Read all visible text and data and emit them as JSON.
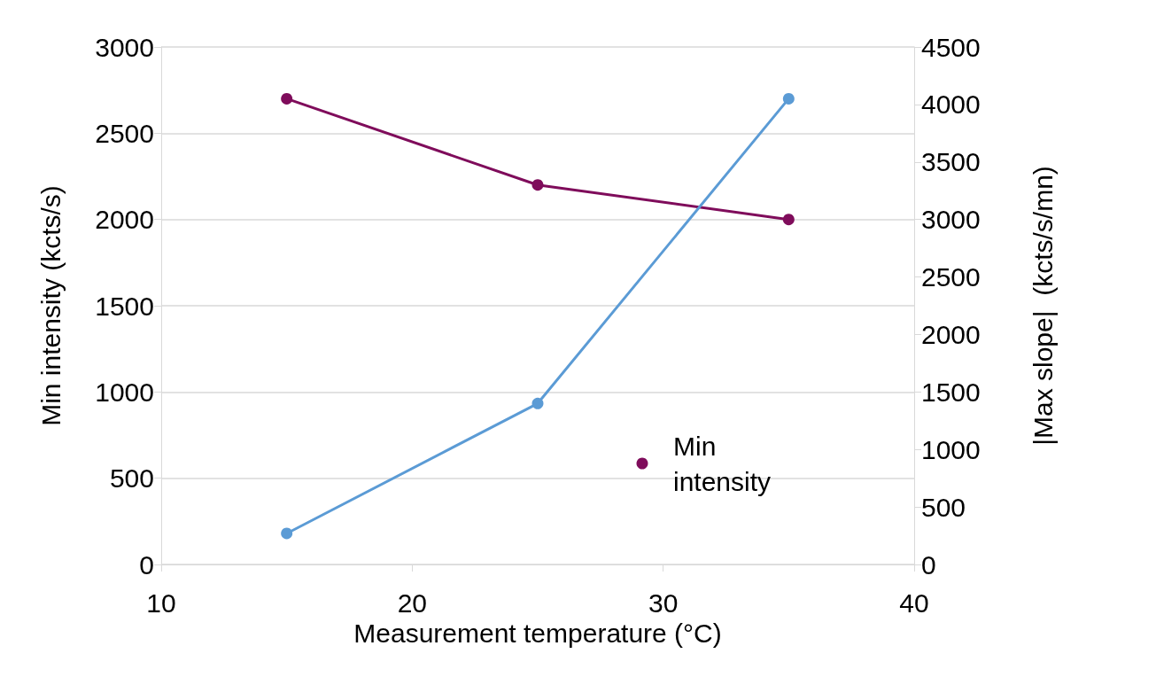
{
  "chart_data": {
    "type": "line",
    "xlabel": "Measurement temperature (°C)",
    "ylabel": "Min intensity (kcts/s)",
    "y2label": "|Max slope|  (kcts/s/mn)",
    "x": [
      15,
      25,
      35
    ],
    "series": [
      {
        "name": "Min intensity",
        "color": "#7f0c5b",
        "values": [
          2700,
          2200,
          2000
        ]
      },
      {
        "color": "#5b9bd5",
        "values": [
          270,
          1400,
          4050
        ],
        "axis": "y2"
      }
    ],
    "xlim": [
      10,
      40
    ],
    "xticks": [
      10,
      20,
      30,
      40
    ],
    "ylim": [
      0,
      3000
    ],
    "yticks": [
      0,
      500,
      1000,
      1500,
      2000,
      2500,
      3000
    ],
    "y2lim": [
      0,
      4500
    ],
    "y2ticks": [
      0,
      500,
      1000,
      1500,
      2000,
      2500,
      3000,
      3500,
      4000,
      4500
    ],
    "grid": "y",
    "legend": "right",
    "marker": "circle",
    "line_style": "solid"
  }
}
